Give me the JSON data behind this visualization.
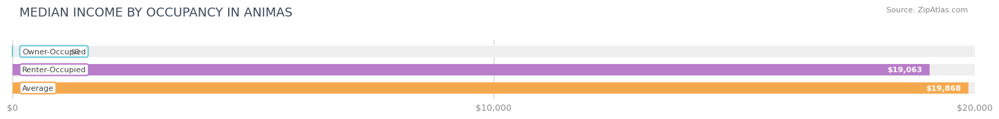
{
  "title": "MEDIAN INCOME BY OCCUPANCY IN ANIMAS",
  "source": "Source: ZipAtlas.com",
  "categories": [
    "Owner-Occupied",
    "Renter-Occupied",
    "Average"
  ],
  "values": [
    0,
    19063,
    19868
  ],
  "bar_colors": [
    "#6dcdd8",
    "#b87cc9",
    "#f5a94e"
  ],
  "value_labels": [
    "$0",
    "$19,063",
    "$19,868"
  ],
  "xlim": [
    0,
    20000
  ],
  "xticks": [
    0,
    10000,
    20000
  ],
  "xticklabels": [
    "$0",
    "$10,000",
    "$20,000"
  ],
  "background_color": "#ffffff",
  "bar_bg_color": "#efefef",
  "title_color": "#3d4a5c",
  "title_fontsize": 13,
  "bar_height": 0.62,
  "fig_width": 14.06,
  "fig_height": 1.96
}
